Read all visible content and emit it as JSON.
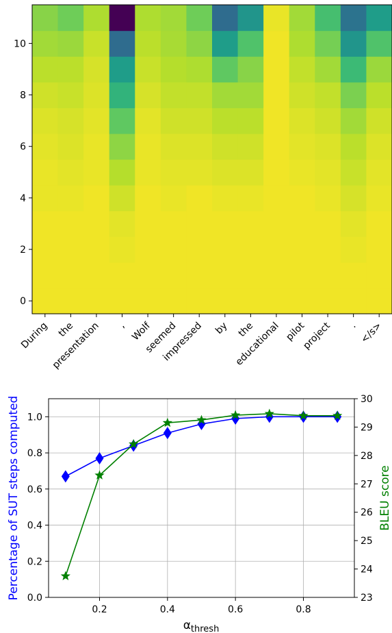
{
  "chart_data": [
    {
      "type": "heatmap",
      "title": "",
      "xlabel": "",
      "ylabel": "",
      "x_tick_labels": [
        "During",
        "the",
        "presentation",
        ",",
        "Wolf",
        "seemed",
        "impressed",
        "by",
        "the",
        "educational",
        "pilot",
        "project",
        ".",
        "</s>"
      ],
      "y_tick_values": [
        0,
        2,
        4,
        6,
        8,
        10
      ],
      "y_tick_labels": [
        "0",
        "2",
        "4",
        "6",
        "8",
        "10"
      ],
      "rows_bottom_to_top": 12,
      "colormap": "viridis",
      "values_by_column": [
        [
          0.98,
          0.98,
          0.98,
          0.98,
          0.97,
          0.97,
          0.96,
          0.95,
          0.93,
          0.9,
          0.86,
          0.82
        ],
        [
          0.98,
          0.98,
          0.98,
          0.98,
          0.97,
          0.96,
          0.95,
          0.94,
          0.92,
          0.9,
          0.85,
          0.78
        ],
        [
          0.98,
          0.98,
          0.98,
          0.98,
          0.98,
          0.97,
          0.97,
          0.96,
          0.95,
          0.94,
          0.92,
          0.88
        ],
        [
          0.98,
          0.98,
          0.97,
          0.96,
          0.93,
          0.89,
          0.83,
          0.75,
          0.65,
          0.55,
          0.35,
          0.0
        ],
        [
          0.98,
          0.98,
          0.98,
          0.98,
          0.98,
          0.97,
          0.97,
          0.96,
          0.94,
          0.92,
          0.9,
          0.88
        ],
        [
          0.98,
          0.98,
          0.98,
          0.98,
          0.97,
          0.96,
          0.95,
          0.93,
          0.91,
          0.89,
          0.87,
          0.86
        ],
        [
          0.98,
          0.98,
          0.98,
          0.98,
          0.98,
          0.96,
          0.95,
          0.93,
          0.91,
          0.88,
          0.83,
          0.78
        ],
        [
          0.98,
          0.98,
          0.98,
          0.98,
          0.97,
          0.95,
          0.93,
          0.9,
          0.86,
          0.75,
          0.55,
          0.35
        ],
        [
          0.98,
          0.98,
          0.98,
          0.98,
          0.97,
          0.95,
          0.93,
          0.9,
          0.86,
          0.82,
          0.72,
          0.52
        ],
        [
          0.98,
          0.98,
          0.98,
          0.98,
          0.98,
          0.98,
          0.98,
          0.98,
          0.98,
          0.98,
          0.98,
          0.97
        ],
        [
          0.98,
          0.98,
          0.98,
          0.98,
          0.98,
          0.97,
          0.96,
          0.95,
          0.93,
          0.91,
          0.88,
          0.86
        ],
        [
          0.98,
          0.98,
          0.98,
          0.98,
          0.97,
          0.96,
          0.95,
          0.93,
          0.91,
          0.86,
          0.79,
          0.7
        ],
        [
          0.98,
          0.98,
          0.97,
          0.96,
          0.94,
          0.92,
          0.9,
          0.86,
          0.8,
          0.68,
          0.52,
          0.38
        ],
        [
          0.98,
          0.98,
          0.98,
          0.98,
          0.97,
          0.96,
          0.95,
          0.93,
          0.9,
          0.85,
          0.72,
          0.55
        ]
      ]
    },
    {
      "type": "line",
      "title": "",
      "xlabel": "α",
      "xlabel_sub": "thresh",
      "ylabel": "Percentage of SUT steps computed",
      "y2label": "BLEU score",
      "x": [
        0.1,
        0.2,
        0.3,
        0.4,
        0.5,
        0.6,
        0.7,
        0.8,
        0.9
      ],
      "xlim": [
        0.05,
        0.95
      ],
      "ylim": [
        0.0,
        1.1
      ],
      "y2lim": [
        23,
        30
      ],
      "x_ticks": [
        "0.2",
        "0.4",
        "0.6",
        "0.8"
      ],
      "y_ticks": [
        "0.0",
        "0.2",
        "0.4",
        "0.6",
        "0.8",
        "1.0"
      ],
      "y2_ticks": [
        "23",
        "24",
        "25",
        "26",
        "27",
        "28",
        "29",
        "30"
      ],
      "grid": true,
      "series": [
        {
          "axis": "left",
          "color": "#0000ff",
          "marker": "diamond",
          "values": [
            0.67,
            0.77,
            0.84,
            0.91,
            0.96,
            0.99,
            1.0,
            1.0,
            1.0
          ]
        },
        {
          "axis": "right",
          "color": "#008000",
          "marker": "star",
          "values": [
            23.75,
            27.3,
            28.4,
            29.15,
            29.25,
            29.42,
            29.47,
            29.4,
            29.4
          ]
        }
      ]
    }
  ]
}
